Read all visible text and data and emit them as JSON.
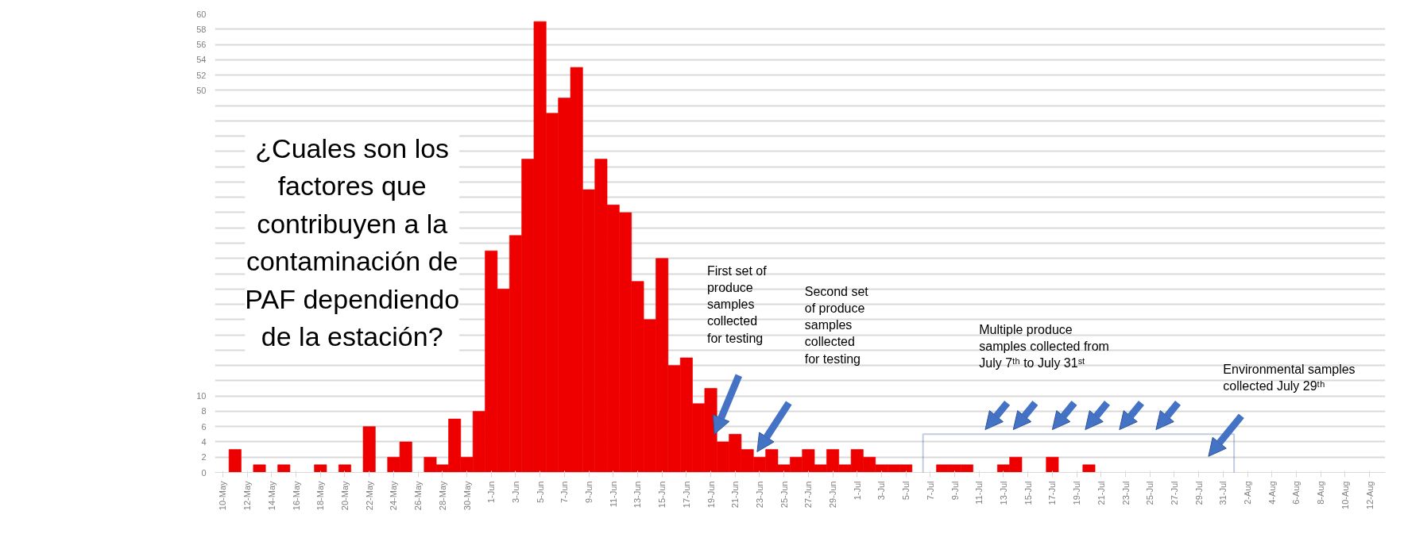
{
  "chart_data": {
    "type": "bar",
    "categories": [
      "10-May",
      null,
      "12-May",
      null,
      "14-May",
      null,
      "16-May",
      null,
      "18-May",
      null,
      "20-May",
      null,
      "22-May",
      null,
      "24-May",
      null,
      "26-May",
      null,
      "28-May",
      null,
      "30-May",
      null,
      "1-Jun",
      null,
      "3-Jun",
      null,
      "5-Jun",
      null,
      "7-Jun",
      null,
      "9-Jun",
      null,
      "11-Jun",
      null,
      "13-Jun",
      null,
      "15-Jun",
      null,
      "17-Jun",
      null,
      "19-Jun",
      null,
      "21-Jun",
      null,
      "23-Jun",
      null,
      "25-Jun",
      null,
      "27-Jun",
      null,
      "29-Jun",
      null,
      "1-Jul",
      null,
      "3-Jul",
      null,
      "5-Jul",
      null,
      "7-Jul",
      null,
      "9-Jul",
      null,
      "11-Jul",
      null,
      "13-Jul",
      null,
      "15-Jul",
      null,
      "17-Jul",
      null,
      "19-Jul",
      null,
      "21-Jul",
      null,
      "23-Jul",
      null,
      "25-Jul",
      null,
      "27-Jul",
      null,
      "29-Jul",
      null,
      "31-Jul",
      null,
      "2-Aug",
      null,
      "4-Aug",
      null,
      "6-Aug",
      null,
      "8-Aug",
      null,
      "10-Aug",
      null,
      "12-Aug"
    ],
    "values": [
      0,
      3,
      0,
      1,
      0,
      1,
      0,
      0,
      1,
      0,
      1,
      0,
      6,
      0,
      2,
      4,
      0,
      2,
      1,
      7,
      2,
      8,
      29,
      24,
      31,
      41,
      59,
      47,
      49,
      53,
      37,
      41,
      35,
      34,
      25,
      20,
      28,
      14,
      15,
      9,
      11,
      4,
      5,
      3,
      2,
      3,
      1,
      2,
      3,
      1,
      3,
      1,
      3,
      2,
      1,
      1,
      1,
      0,
      0,
      1,
      1,
      1,
      0,
      0,
      1,
      2,
      0,
      0,
      2,
      0,
      0,
      1,
      0,
      0,
      0,
      0,
      0,
      0,
      0,
      0,
      0,
      0,
      0,
      0,
      0,
      0,
      0,
      0,
      0,
      0,
      0,
      0,
      0,
      0,
      0
    ],
    "color": "#ee0000",
    "ylim": [
      0,
      60
    ],
    "yticks": [
      0,
      2,
      4,
      6,
      8,
      10,
      {
        "value": 12,
        "label": null
      },
      {
        "value": 14,
        "label": null
      },
      {
        "value": 16,
        "label": null
      },
      {
        "value": 18,
        "label": null
      },
      {
        "value": 20,
        "label": null
      },
      {
        "value": 22,
        "label": null
      },
      {
        "value": 24,
        "label": null
      },
      {
        "value": 26,
        "label": null
      },
      {
        "value": 28,
        "label": null
      },
      {
        "value": 30,
        "label": null
      },
      {
        "value": 32,
        "label": null
      },
      {
        "value": 34,
        "label": null
      },
      {
        "value": 36,
        "label": null
      },
      {
        "value": 38,
        "label": null
      },
      {
        "value": 40,
        "label": null
      },
      {
        "value": 42,
        "label": null
      },
      {
        "value": 44,
        "label": null
      },
      {
        "value": 46,
        "label": null
      },
      {
        "value": 48,
        "label": null
      },
      50,
      52,
      54,
      56,
      58,
      60
    ],
    "grid": "y",
    "annotations": [
      "¿Cuales son los\nfactores que\ncontribuyen a la\ncontaminación de\nPAF dependiendo\nde la estación?",
      "First set of\nproduce\nsamples\ncollected\nfor testing",
      "Second set\nof produce\nsamples\ncollected\nfor testing",
      "Multiple produce\nsamples collected from\nJuly  7ᵗʰ to July 31ˢᵗ",
      "Environmental samples\ncollected  July  29ᵗʰ"
    ]
  }
}
